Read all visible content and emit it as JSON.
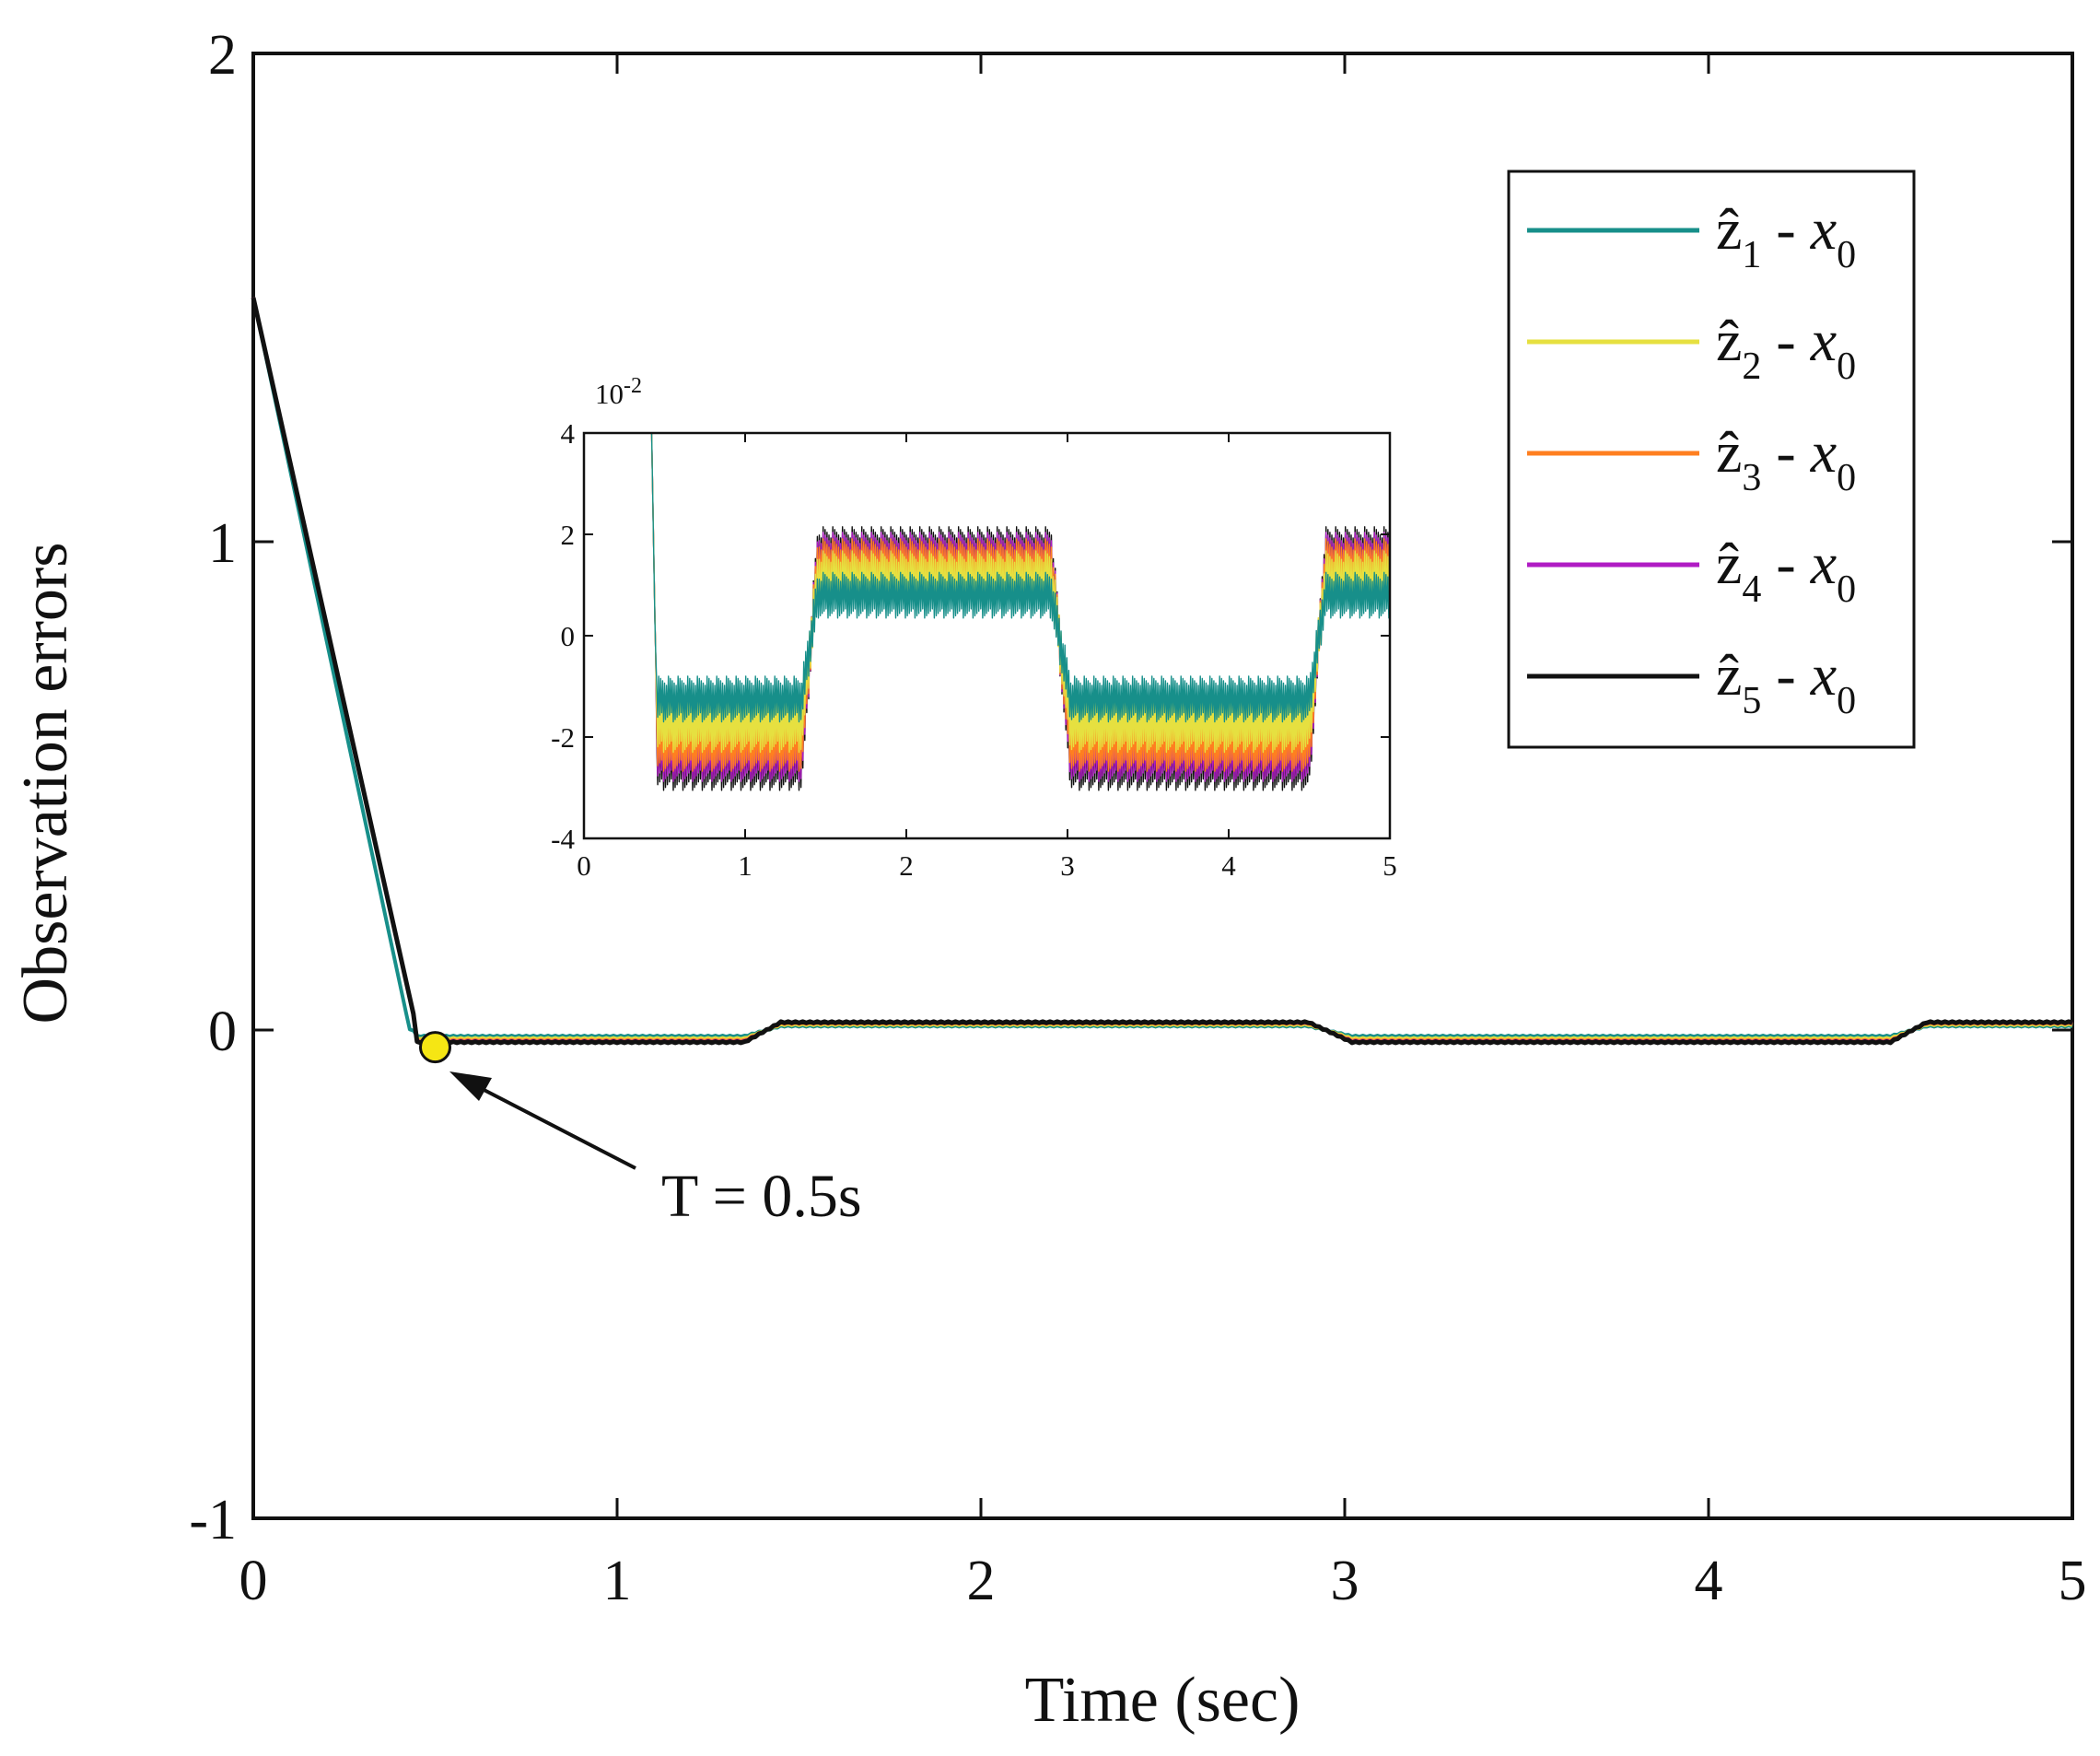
{
  "chart_data": {
    "type": "line",
    "xlabel": "Time (sec)",
    "ylabel": "Observation errors",
    "xlim": [
      0,
      5
    ],
    "ylim": [
      -1,
      2
    ],
    "xticks": [
      "0",
      "1",
      "2",
      "3",
      "4",
      "5"
    ],
    "yticks": [
      "-1",
      "0",
      "1",
      "2"
    ],
    "grid": false,
    "legend_position": "top-right",
    "series": [
      {
        "name": "ẑ1 - x0",
        "hat": "ẑ",
        "sub": "1",
        "rest": " - ",
        "var": "x",
        "varsub": "0",
        "color": "#178f8a",
        "offset": 0.5
      },
      {
        "name": "ẑ2 - x0",
        "hat": "ẑ",
        "sub": "2",
        "rest": " - ",
        "var": "x",
        "varsub": "0",
        "color": "#e6e040",
        "offset": 0.7
      },
      {
        "name": "ẑ3 - x0",
        "hat": "ẑ",
        "sub": "3",
        "rest": " - ",
        "var": "x",
        "varsub": "0",
        "color": "#ff7f1f",
        "offset": 0.85
      },
      {
        "name": "ẑ4 - x0",
        "hat": "ẑ",
        "sub": "4",
        "rest": " - ",
        "var": "x",
        "varsub": "0",
        "color": "#b01cc4",
        "offset": 0.93
      },
      {
        "name": "ẑ5 - x0",
        "hat": "ẑ",
        "sub": "5",
        "rest": " - ",
        "var": "x",
        "varsub": "0",
        "color": "#111111",
        "offset": 1.0
      }
    ],
    "main_shape": {
      "start_value": 1.5,
      "converge_time": 0.45,
      "segments": [
        {
          "t0": 0.45,
          "t1": 1.35,
          "level": -2.5
        },
        {
          "t0": 1.45,
          "t1": 2.9,
          "level": 1.6
        },
        {
          "t0": 3.02,
          "t1": 4.5,
          "level": -2.5
        },
        {
          "t0": 4.6,
          "t1": 5.0,
          "level": 1.6
        }
      ],
      "scale": 0.01
    },
    "inset": {
      "xlim": [
        0,
        5
      ],
      "ylim": [
        -4,
        4
      ],
      "xticks": [
        "0",
        "1",
        "2",
        "3",
        "4",
        "5"
      ],
      "yticks": [
        "-4",
        "-2",
        "0",
        "2",
        "4"
      ],
      "multiplier": "10",
      "multiplier_exp": "-2"
    },
    "annotation": {
      "text": "T = 0.5s",
      "point_x": 0.5,
      "point_y": -0.02,
      "marker_color": "#f5e614"
    }
  }
}
